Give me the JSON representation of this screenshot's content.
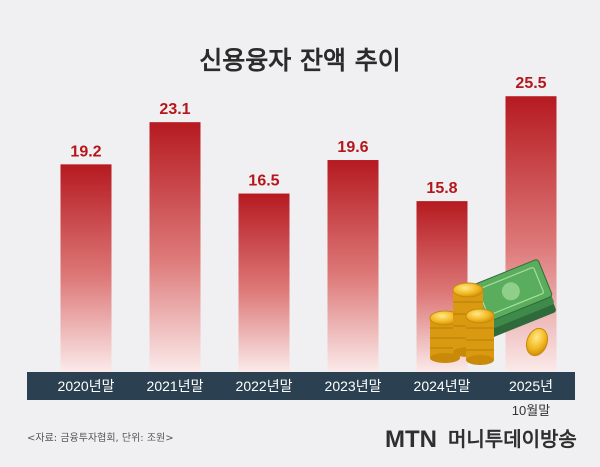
{
  "chart_data": {
    "type": "bar",
    "title": "신용융자 잔액 추이",
    "categories": [
      "2020년말",
      "2021년말",
      "2022년말",
      "2023년말",
      "2024년말",
      "2025년"
    ],
    "category_sublabels": [
      "",
      "",
      "",
      "",
      "",
      "10월말"
    ],
    "values": [
      19.2,
      23.1,
      16.5,
      19.6,
      15.8,
      25.5
    ],
    "value_labels": [
      "19.2",
      "23.1",
      "16.5",
      "19.6",
      "15.8",
      "25.5"
    ],
    "ylim": [
      0,
      27
    ],
    "grid": false,
    "legend": "none"
  },
  "footer": {
    "source": "<자료: 금융투자협회, 단위: 조원>",
    "logo_brand": "MTN",
    "logo_name": "머니투데이방송"
  },
  "colors": {
    "bar_top": "#b51a20",
    "bar_bottom": "#fbeaea",
    "axis_band": "#2b4152",
    "value_text": "#b5161c",
    "background": "#f0f0f2"
  },
  "decoration": {
    "icon": "coins-and-cash-icon"
  }
}
